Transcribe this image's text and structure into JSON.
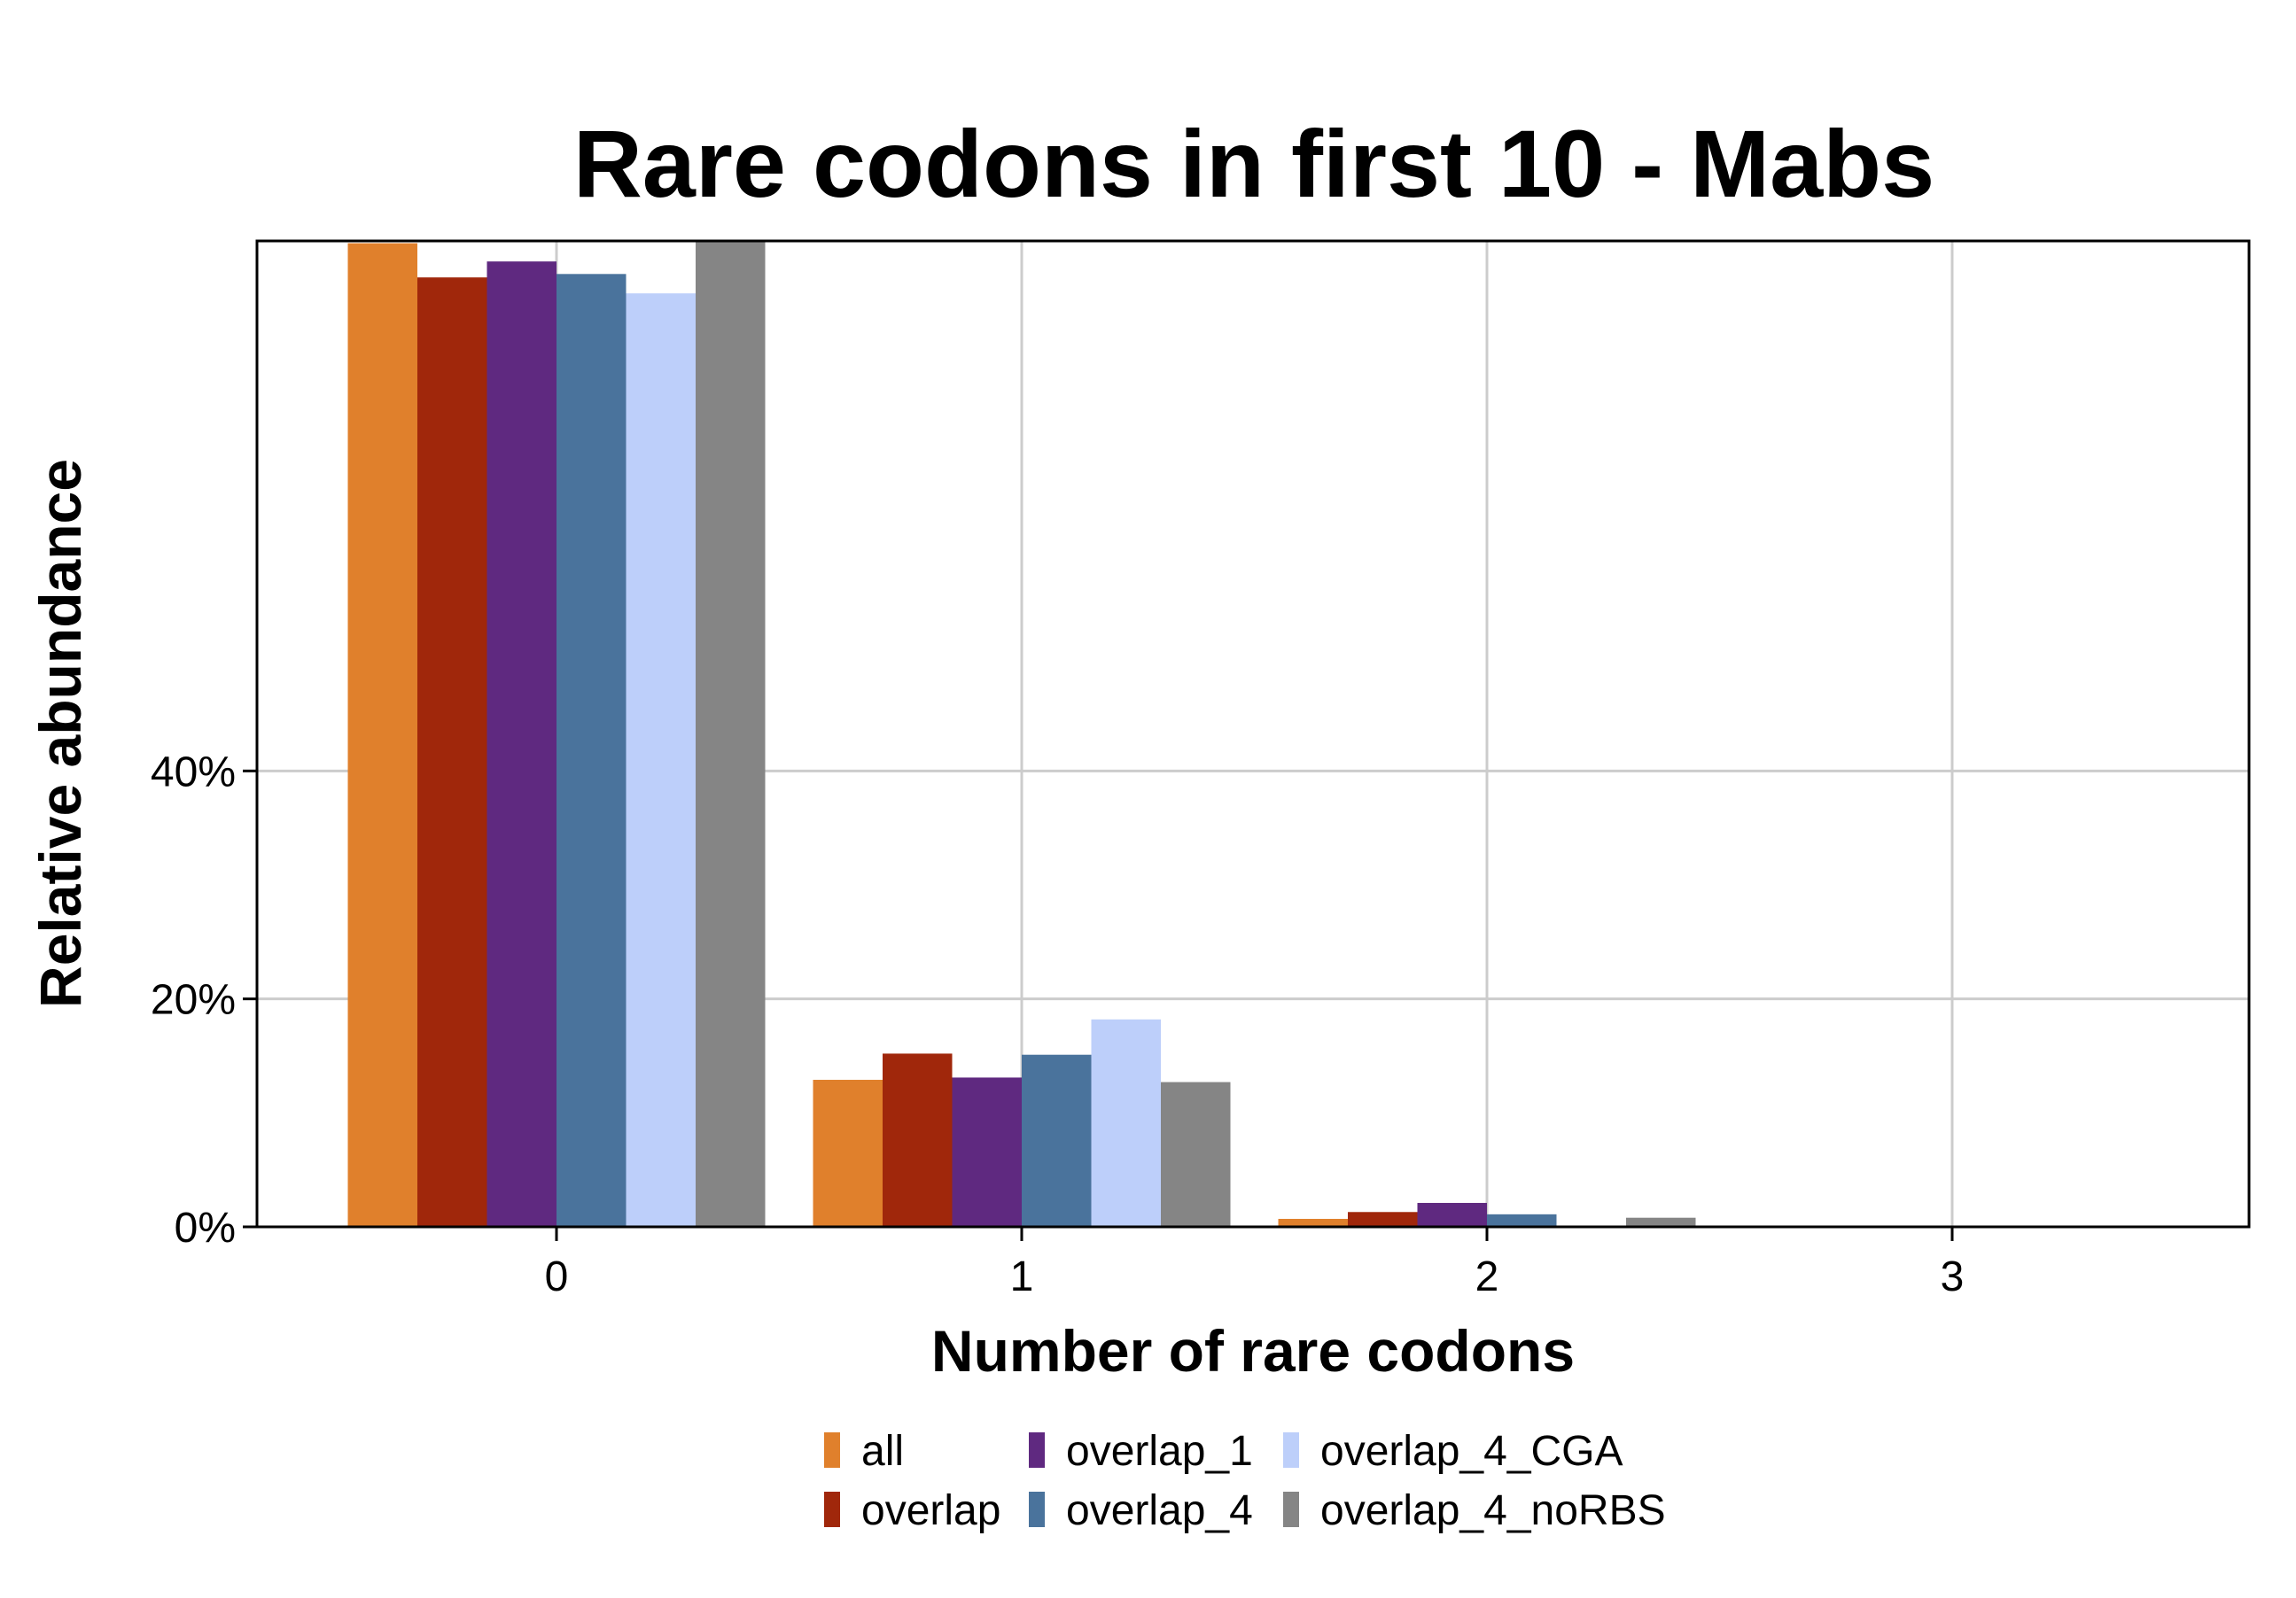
{
  "chart_data": {
    "type": "bar",
    "title": "Rare codons in first 10 - Mabs",
    "xlabel": "Number of rare codons",
    "ylabel": "Relative abundance",
    "categories": [
      "0",
      "1",
      "2",
      "3"
    ],
    "y_ticks": [
      "0%",
      "20%",
      "40%"
    ],
    "y_tick_values": [
      0,
      20,
      40
    ],
    "ylim": [
      0,
      86.5
    ],
    "grid": true,
    "legend_position": "bottom",
    "series": [
      {
        "name": "all",
        "color": "#E0802C",
        "values": [
          86.3,
          12.9,
          0.7,
          0
        ]
      },
      {
        "name": "overlap",
        "color": "#A0270B",
        "values": [
          83.3,
          15.2,
          1.3,
          0
        ]
      },
      {
        "name": "overlap_1",
        "color": "#5F2980",
        "values": [
          84.7,
          13.1,
          2.1,
          0
        ]
      },
      {
        "name": "overlap_4",
        "color": "#4A739C",
        "values": [
          83.6,
          15.1,
          1.1,
          0
        ]
      },
      {
        "name": "overlap_4_CGA",
        "color": "#BDCFFA",
        "values": [
          81.9,
          18.2,
          0,
          0
        ]
      },
      {
        "name": "overlap_4_noRBS",
        "color": "#858585",
        "values": [
          86.5,
          12.7,
          0.8,
          0
        ]
      }
    ]
  }
}
